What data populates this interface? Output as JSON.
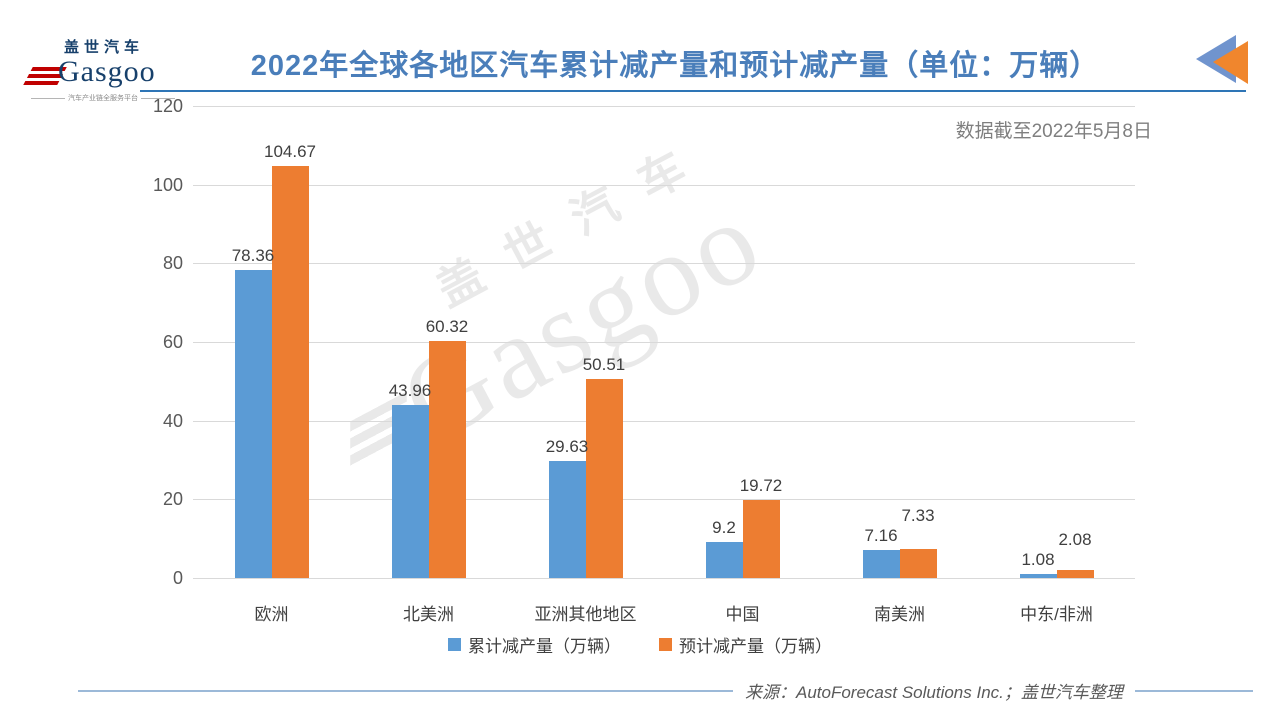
{
  "logo": {
    "cn": "盖世汽车",
    "en": "Gasgoo",
    "tagline": "汽车产业链全服务平台"
  },
  "header": {
    "title": "2022年全球各地区汽车累计减产量和预计减产量（单位：万辆）",
    "note": "数据截至2022年5月8日"
  },
  "watermark": {
    "cn": "盖世汽车",
    "en": "Gasgoo"
  },
  "chart_data": {
    "type": "bar",
    "title": "2022年全球各地区汽车累计减产量和预计减产量（单位：万辆）",
    "note": "数据截至2022年5月8日",
    "categories": [
      "欧洲",
      "北美洲",
      "亚洲其他地区",
      "中国",
      "南美洲",
      "中东/非洲"
    ],
    "series": [
      {
        "name": "累计减产量（万辆）",
        "color": "#5B9BD5",
        "values": [
          78.36,
          43.96,
          29.63,
          9.2,
          7.16,
          1.08
        ]
      },
      {
        "name": "预计减产量（万辆）",
        "color": "#ED7D31",
        "values": [
          104.67,
          60.32,
          50.51,
          19.72,
          7.33,
          2.08
        ]
      }
    ],
    "xlabel": "",
    "ylabel": "",
    "ylim": [
      0,
      120
    ],
    "ytick_step": 20,
    "grid": true,
    "legend_position": "bottom"
  },
  "footer": {
    "source": "来源：AutoForecast Solutions Inc.；盖世汽车整理"
  },
  "colors": {
    "series1": "#5B9BD5",
    "series2": "#ED7D31",
    "title": "#4A7EBA",
    "title_rule": "#2E75B6",
    "gridline": "#D9D9D9",
    "axis_text": "#595959",
    "note_text": "#7F7F7F",
    "footer_rule": "#9CB9D8",
    "logo_blue": "#17406B",
    "logo_red": "#C00000",
    "watermark": "#E9E9E9"
  }
}
